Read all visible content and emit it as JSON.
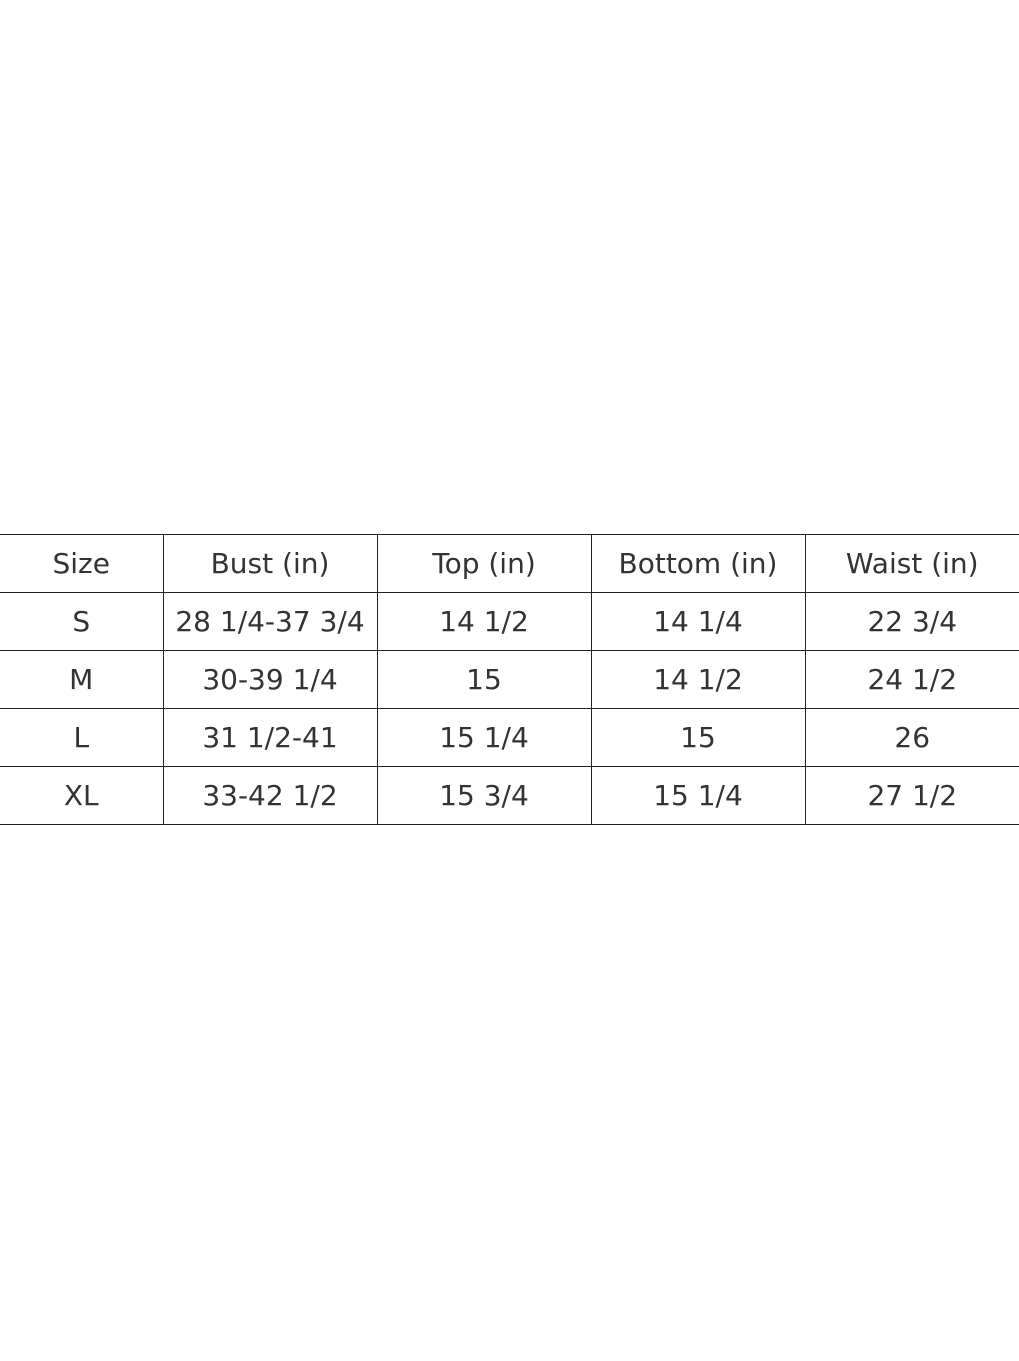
{
  "table": {
    "headers": [
      "Size",
      "Bust (in)",
      "Top (in)",
      "Bottom (in)",
      "Waist (in)"
    ],
    "rows": [
      [
        "S",
        "28 1/4-37 3/4",
        "14 1/2",
        "14 1/4",
        "22 3/4"
      ],
      [
        "M",
        "30-39 1/4",
        "15",
        "14 1/2",
        "24 1/2"
      ],
      [
        "L",
        "31 1/2-41",
        "15 1/4",
        "15",
        "26"
      ],
      [
        "XL",
        "33-42 1/2",
        "15 3/4",
        "15 1/4",
        "27 1/2"
      ]
    ]
  }
}
